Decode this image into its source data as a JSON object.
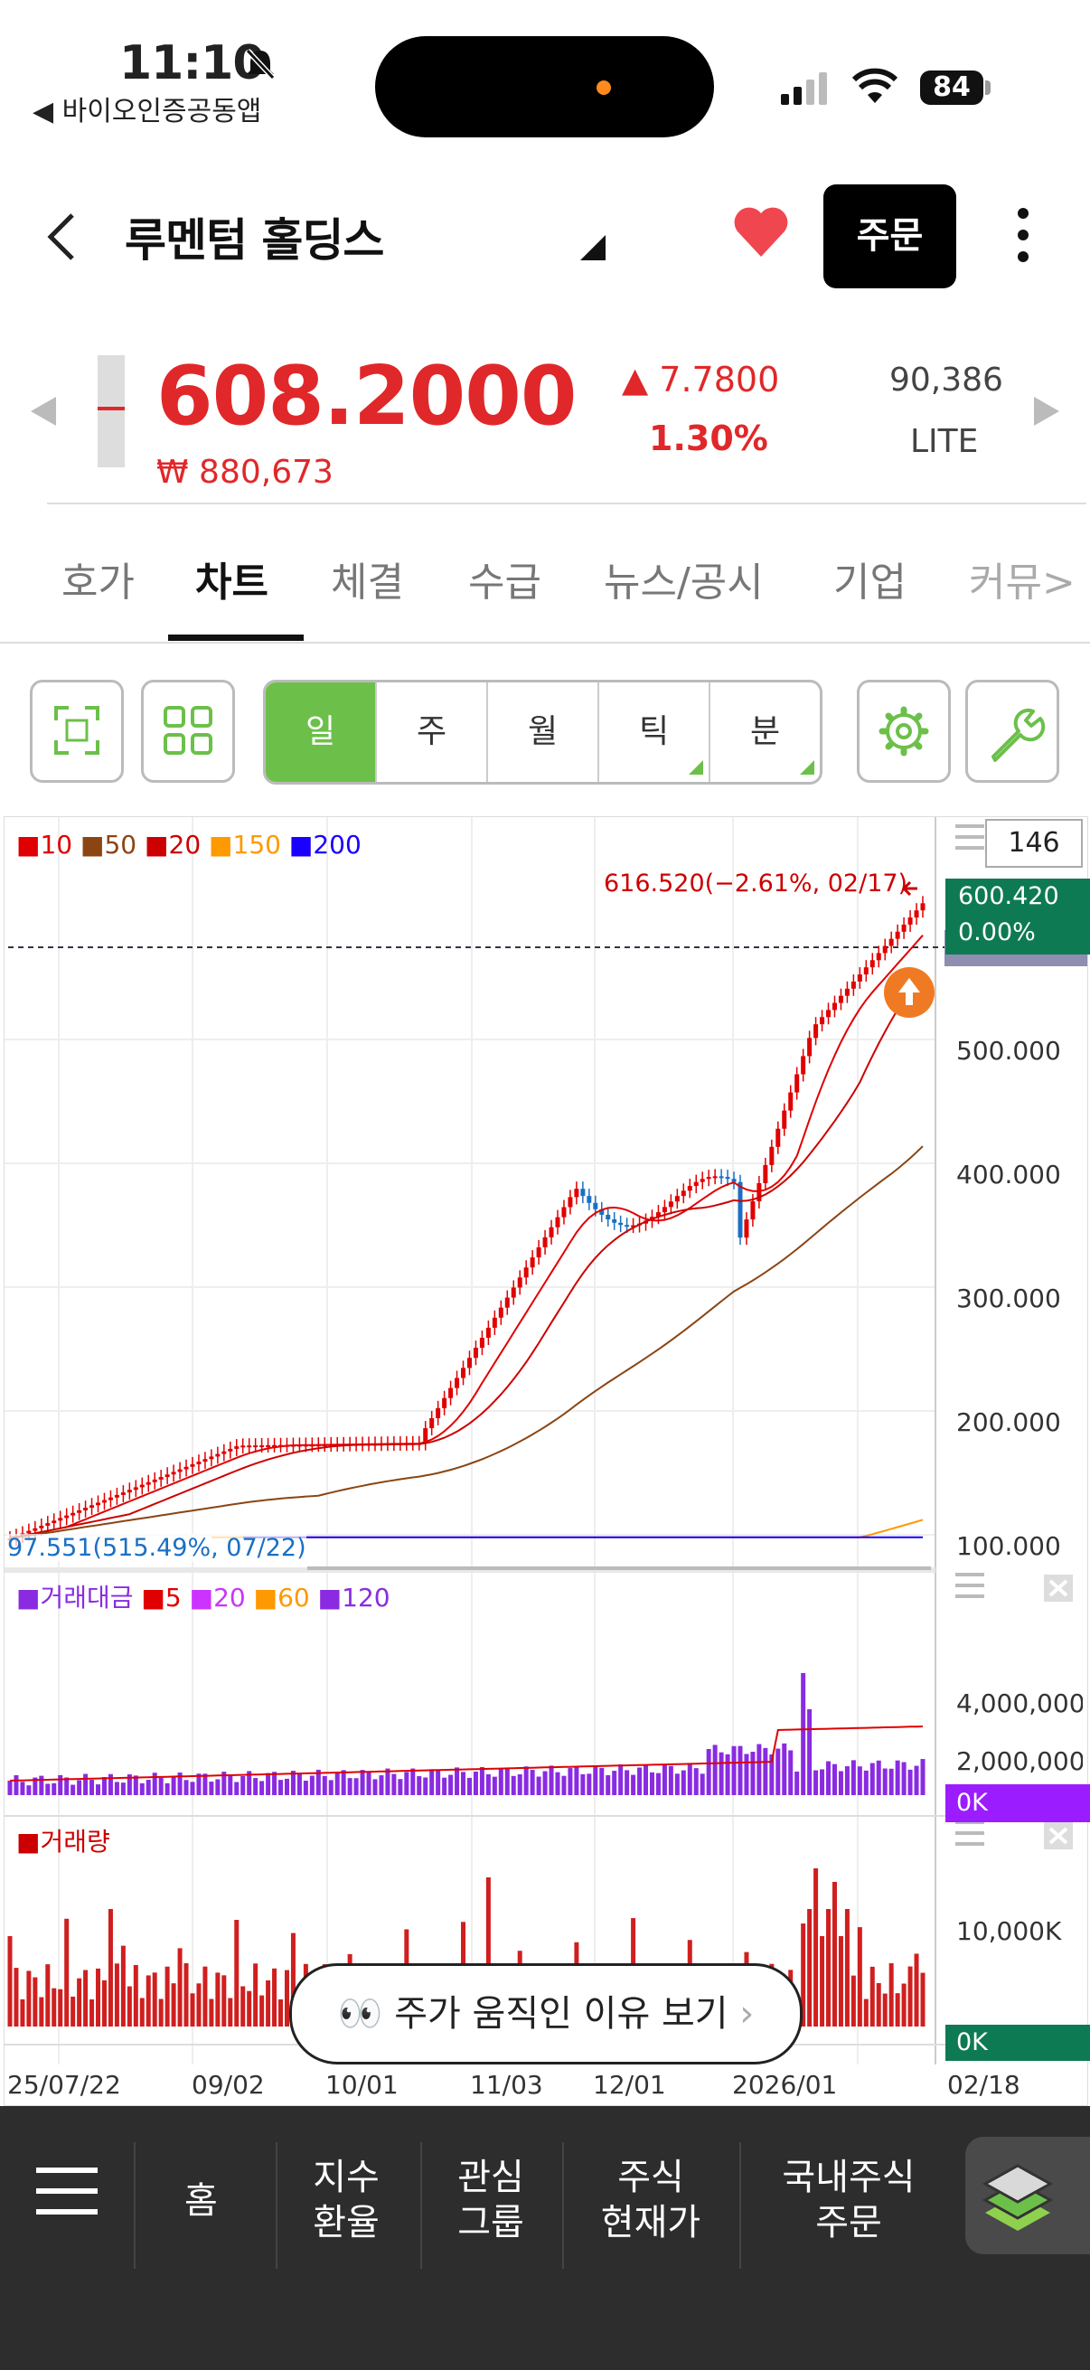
{
  "status": {
    "time": "11:10",
    "back_app": "◀ 바이오인증공동앱",
    "battery": "84"
  },
  "header": {
    "title": "루멘텀 홀딩스",
    "order_label": "주문"
  },
  "quote": {
    "price": "608.2000",
    "price_krw": "₩ 880,673",
    "change": "▲ 7.7800",
    "change_pct": "1.30%",
    "volume": "90,386",
    "market": "LITE"
  },
  "tabs": [
    "호가",
    "차트",
    "체결",
    "수급",
    "뉴스/공시",
    "기업",
    "커뮤>"
  ],
  "period_tabs": [
    "일",
    "주",
    "월",
    "틱",
    "분"
  ],
  "chart": {
    "count_box": "146",
    "ma_legend": [
      {
        "label": "10",
        "color": "#e00000"
      },
      {
        "label": "50",
        "color": "#8b4513"
      },
      {
        "label": "20",
        "color": "#cc0000"
      },
      {
        "label": "150",
        "color": "#ff9900"
      },
      {
        "label": "200",
        "color": "#1a00ff"
      }
    ],
    "high_annotation": "616.520(−2.61%, 02/17)",
    "low_annotation": "97.551(515.49%, 07/22)",
    "current_box_price": "600.420",
    "current_box_pct": "0.00%",
    "y_ticks": [
      "500.000",
      "400.000",
      "300.000",
      "200.000",
      "100.000"
    ],
    "volume_amount_legend": [
      {
        "label": "거래대금",
        "color": "#8a2be2"
      },
      {
        "label": "5",
        "color": "#e00000"
      },
      {
        "label": "20",
        "color": "#cc33ff"
      },
      {
        "label": "60",
        "color": "#ff9900"
      },
      {
        "label": "120",
        "color": "#8a2be2"
      }
    ],
    "amount_ticks": [
      "4,000,000,(",
      "2,000,000,("
    ],
    "amount_zero": "0K",
    "volume_legend": "거래량",
    "volume_ticks": [
      "10,000K"
    ],
    "volume_zero": "0K",
    "x_ticks": [
      "25/07/22",
      "09/02",
      "10/01",
      "11/03",
      "12/01",
      "2026/01",
      "02/18"
    ]
  },
  "reason_button": "주가 움직인 이유 보기",
  "nav": {
    "home": "홈",
    "index_1": "지수",
    "index_2": "환율",
    "watch_1": "관심",
    "watch_2": "그룹",
    "stock_1": "주식",
    "stock_2": "현재가",
    "domestic_1": "국내주식",
    "domestic_2": "주문"
  }
}
